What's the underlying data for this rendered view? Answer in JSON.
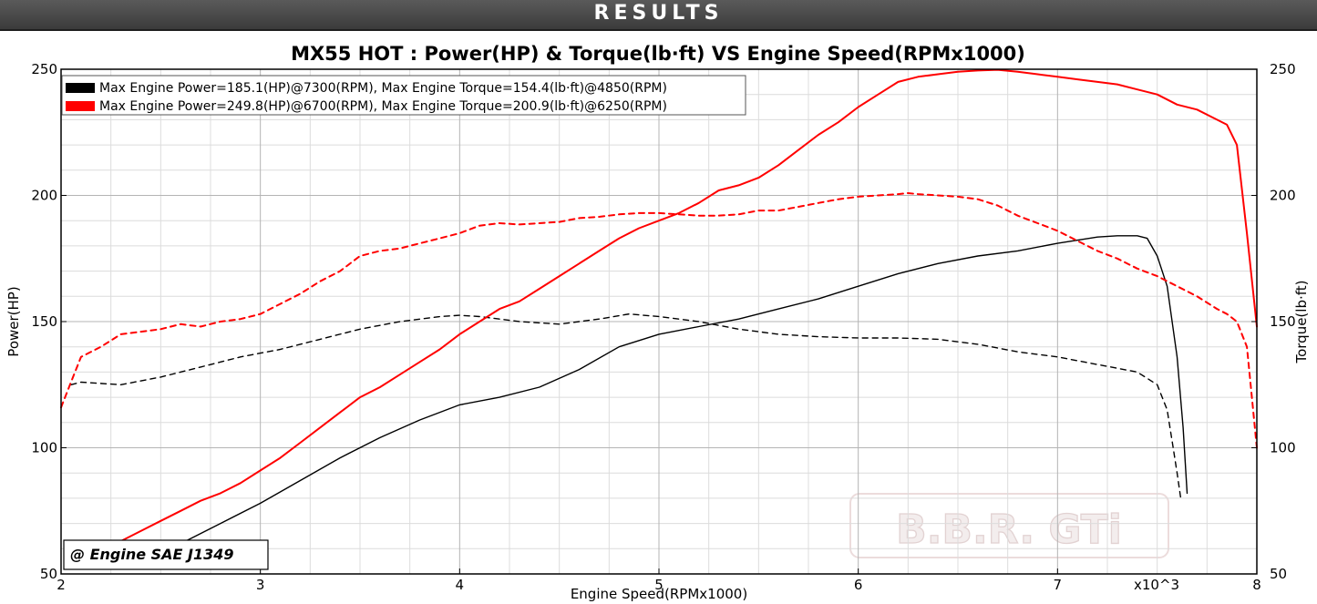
{
  "banner": {
    "title": "RESULTS"
  },
  "chart_data": {
    "type": "line",
    "title": "MX55 HOT : Power(HP) & Torque(lb·ft) VS Engine Speed(RPMx1000)",
    "xlabel": "Engine Speed(RPMx1000)",
    "ylabel": "Power(HP)",
    "y2label": "Torque(lb·ft)",
    "x_multiplier_label": "x10^3",
    "xlim": [
      2,
      8
    ],
    "ylim": [
      50,
      250
    ],
    "y2lim": [
      50,
      250
    ],
    "x_ticks": [
      2,
      3,
      4,
      5,
      6,
      7,
      8
    ],
    "y_ticks": [
      50,
      100,
      150,
      200,
      250
    ],
    "y2_ticks": [
      50,
      100,
      150,
      200,
      250
    ],
    "grid": true,
    "legend_position": "top-left",
    "annotation": "@ Engine SAE J1349",
    "watermark": "B.B.R. GTi",
    "legend": [
      {
        "text": "Max Engine Power=185.1(HP)@7300(RPM), Max Engine Torque=154.4(lb·ft)@4850(RPM)",
        "color": "#000000"
      },
      {
        "text": "Max Engine Power=249.8(HP)@6700(RPM), Max Engine Torque=200.9(lb·ft)@6250(RPM)",
        "color": "#ff0000"
      }
    ],
    "series": [
      {
        "color": "#000000",
        "style": "solid",
        "axis": "left",
        "x": [
          2.5,
          2.6,
          2.8,
          3.0,
          3.2,
          3.4,
          3.6,
          3.8,
          4.0,
          4.2,
          4.4,
          4.6,
          4.8,
          5.0,
          5.2,
          5.4,
          5.6,
          5.8,
          6.0,
          6.2,
          6.4,
          6.6,
          6.8,
          7.0,
          7.2,
          7.3,
          7.4,
          7.45,
          7.5,
          7.55,
          7.6,
          7.63,
          7.65
        ],
        "y": [
          58,
          62,
          70,
          78,
          87,
          96,
          104,
          111,
          117,
          120,
          124,
          131,
          140,
          145,
          148,
          151,
          155,
          159,
          164,
          169,
          173,
          176,
          178,
          181,
          183.5,
          184,
          184,
          183,
          176,
          164,
          136,
          108,
          82
        ]
      },
      {
        "color": "#000000",
        "style": "dashed",
        "axis": "right",
        "x": [
          2.05,
          2.1,
          2.3,
          2.5,
          2.7,
          2.9,
          3.1,
          3.3,
          3.5,
          3.7,
          3.9,
          4.0,
          4.1,
          4.3,
          4.5,
          4.7,
          4.85,
          5.0,
          5.2,
          5.4,
          5.6,
          5.8,
          6.0,
          6.2,
          6.4,
          6.6,
          6.8,
          7.0,
          7.2,
          7.4,
          7.5,
          7.55,
          7.58,
          7.6,
          7.62
        ],
        "y": [
          125,
          126,
          125,
          128,
          132,
          136,
          139,
          143,
          147,
          150,
          152,
          152.5,
          152,
          150,
          149,
          151,
          153,
          152,
          150,
          147,
          145,
          144,
          143.5,
          143.5,
          143,
          141,
          138,
          136,
          133,
          130,
          125,
          115,
          100,
          90,
          79
        ]
      },
      {
        "color": "#ff0000",
        "style": "solid",
        "axis": "left",
        "x": [
          2.3,
          2.4,
          2.5,
          2.6,
          2.7,
          2.8,
          2.9,
          3.0,
          3.1,
          3.2,
          3.3,
          3.4,
          3.5,
          3.6,
          3.7,
          3.8,
          3.9,
          4.0,
          4.1,
          4.2,
          4.3,
          4.4,
          4.5,
          4.6,
          4.7,
          4.8,
          4.9,
          5.0,
          5.1,
          5.2,
          5.3,
          5.4,
          5.5,
          5.6,
          5.7,
          5.8,
          5.9,
          6.0,
          6.1,
          6.2,
          6.3,
          6.4,
          6.5,
          6.6,
          6.7,
          6.8,
          6.9,
          7.0,
          7.1,
          7.2,
          7.3,
          7.4,
          7.5,
          7.6,
          7.7,
          7.8,
          7.85,
          7.9,
          7.95,
          8.0
        ],
        "y": [
          63,
          67,
          71,
          75,
          79,
          82,
          86,
          91,
          96,
          102,
          108,
          114,
          120,
          124,
          129,
          134,
          139,
          145,
          150,
          155,
          158,
          163,
          168,
          173,
          178,
          183,
          187,
          190,
          193,
          197,
          202,
          204,
          207,
          212,
          218,
          224,
          229,
          235,
          240,
          245,
          247,
          248,
          249,
          249.5,
          249.8,
          249,
          248,
          247,
          246,
          245,
          244,
          242,
          240,
          236,
          234,
          230,
          228,
          220,
          185,
          148
        ]
      },
      {
        "color": "#ff0000",
        "style": "dashed",
        "axis": "right",
        "x": [
          2.0,
          2.05,
          2.1,
          2.2,
          2.3,
          2.4,
          2.5,
          2.6,
          2.7,
          2.8,
          2.9,
          3.0,
          3.1,
          3.2,
          3.3,
          3.4,
          3.5,
          3.6,
          3.7,
          3.8,
          3.9,
          4.0,
          4.1,
          4.2,
          4.3,
          4.4,
          4.5,
          4.6,
          4.7,
          4.8,
          4.9,
          5.0,
          5.1,
          5.2,
          5.3,
          5.4,
          5.5,
          5.6,
          5.7,
          5.8,
          5.9,
          6.0,
          6.1,
          6.2,
          6.25,
          6.3,
          6.4,
          6.5,
          6.6,
          6.7,
          6.8,
          6.9,
          7.0,
          7.1,
          7.2,
          7.3,
          7.4,
          7.5,
          7.6,
          7.7,
          7.8,
          7.85,
          7.9,
          7.95,
          8.0
        ],
        "y": [
          116,
          126,
          136,
          140,
          145,
          146,
          147,
          149,
          148,
          150,
          151,
          153,
          157,
          161,
          166,
          170,
          176,
          178,
          179,
          181,
          183,
          185,
          188,
          189,
          188.5,
          189,
          189.5,
          191,
          191.5,
          192.5,
          193,
          193,
          192.5,
          192,
          192,
          192.5,
          194,
          194,
          195.5,
          197,
          198.5,
          199.5,
          200,
          200.5,
          200.9,
          200.5,
          200,
          199.5,
          198.5,
          196,
          192,
          189,
          186,
          182,
          178,
          175,
          171,
          168,
          164,
          160,
          155,
          153,
          150,
          140,
          100
        ]
      }
    ]
  }
}
